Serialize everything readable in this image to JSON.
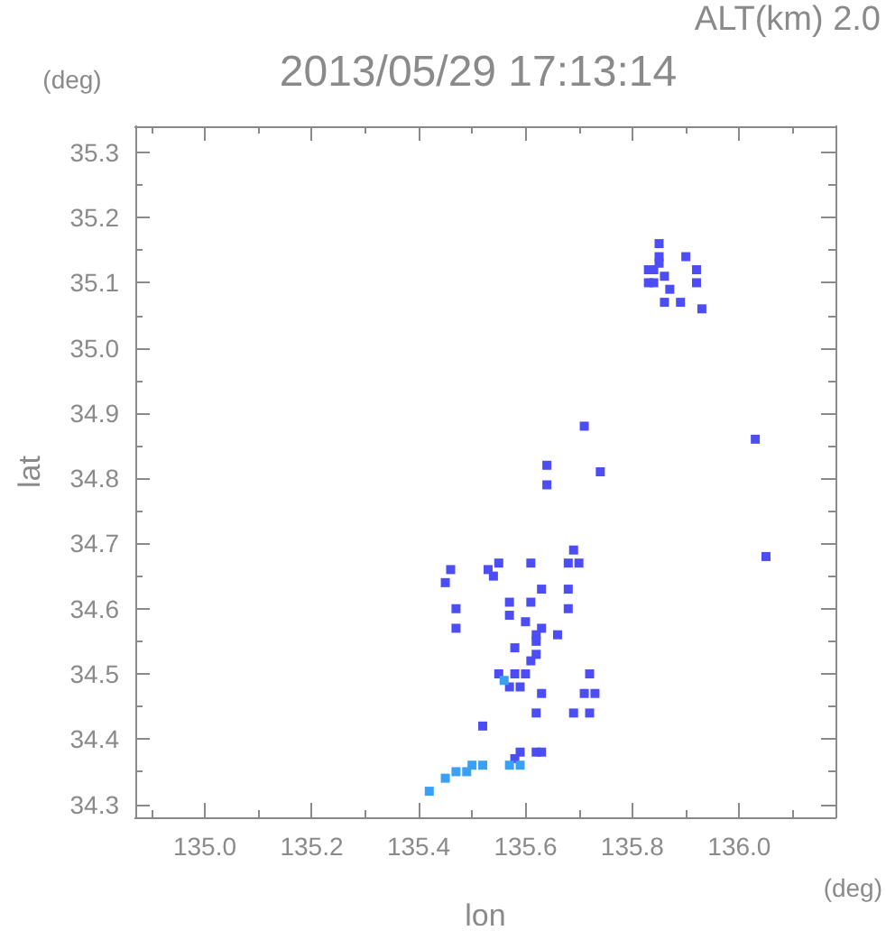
{
  "chart_data": {
    "type": "scatter",
    "title": "2013/05/29 17:13:14",
    "subtitle": "ALT(km) 2.0",
    "xlabel": "lon",
    "ylabel": "lat",
    "annotations": [
      "(deg)",
      "(deg)"
    ],
    "xlim": [
      134.87,
      136.18
    ],
    "ylim": [
      34.28,
      35.34
    ],
    "xticks": [
      {
        "value": 134.9,
        "label": null
      },
      {
        "value": 135,
        "label": "135.0"
      },
      {
        "value": 135.1,
        "label": null
      },
      135.2,
      {
        "value": 135.3,
        "label": null
      },
      135.4,
      {
        "value": 135.5,
        "label": null
      },
      135.6,
      {
        "value": 135.7,
        "label": null
      },
      135.8,
      {
        "value": 135.9,
        "label": null
      },
      {
        "value": 136,
        "label": "136.0"
      },
      {
        "value": 136.1,
        "label": null
      }
    ],
    "yticks": [
      34.3,
      {
        "value": 34.35,
        "label": null
      },
      34.4,
      {
        "value": 34.45,
        "label": null
      },
      34.5,
      {
        "value": 34.55,
        "label": null
      },
      34.6,
      {
        "value": 34.65,
        "label": null
      },
      34.7,
      {
        "value": 34.75,
        "label": null
      },
      34.8,
      {
        "value": 34.85,
        "label": null
      },
      34.9,
      {
        "value": 34.95,
        "label": null
      },
      {
        "value": 35,
        "label": "35.0"
      },
      {
        "value": 35.05,
        "label": null
      },
      35.1,
      {
        "value": 35.15,
        "label": null
      },
      35.2,
      {
        "value": 35.25,
        "label": null
      },
      35.3
    ],
    "marker": "square",
    "series": [
      {
        "color": "#4d4df5",
        "x": [
          135.85,
          135.85,
          135.84,
          135.84,
          135.87,
          135.9,
          135.92,
          135.86,
          135.89,
          135.93,
          135.83,
          135.83,
          135.85,
          135.86,
          135.92,
          135.71,
          136.03,
          135.64,
          135.74,
          135.64,
          135.69,
          136.05,
          135.46,
          135.53,
          135.55,
          135.61,
          135.68,
          135.7,
          135.45,
          135.54,
          135.63,
          135.68,
          135.61,
          135.57,
          135.47,
          135.57,
          135.68,
          135.6,
          135.63,
          135.47,
          135.62,
          135.66,
          135.58,
          135.62,
          135.61,
          135.62,
          135.55,
          135.58,
          135.6,
          135.57,
          135.59,
          135.72,
          135.73,
          135.71,
          135.63,
          135.72,
          135.69,
          135.62,
          135.52,
          135.59,
          135.62,
          135.58,
          135.63
        ],
        "values": [
          35.16,
          35.14,
          35.12,
          35.1,
          35.09,
          35.14,
          35.1,
          35.07,
          35.07,
          35.06,
          35.12,
          35.1,
          35.13,
          35.11,
          35.12,
          34.88,
          34.86,
          34.82,
          34.81,
          34.79,
          34.69,
          34.68,
          34.66,
          34.66,
          34.67,
          34.67,
          34.67,
          34.67,
          34.64,
          34.65,
          34.63,
          34.63,
          34.61,
          34.61,
          34.6,
          34.59,
          34.6,
          34.58,
          34.57,
          34.57,
          34.56,
          34.56,
          34.54,
          34.55,
          34.52,
          34.53,
          34.5,
          34.5,
          34.5,
          34.48,
          34.48,
          34.5,
          34.47,
          34.47,
          34.47,
          34.44,
          34.44,
          34.44,
          34.42,
          34.38,
          34.38,
          34.37,
          34.38
        ]
      },
      {
        "color": "#3aa0f5",
        "x": [
          135.45,
          135.47,
          135.49,
          135.5,
          135.52,
          135.57,
          135.59,
          135.42,
          135.56
        ],
        "values": [
          34.34,
          34.35,
          34.35,
          34.36,
          34.36,
          34.36,
          34.36,
          34.32,
          34.49
        ]
      }
    ]
  }
}
